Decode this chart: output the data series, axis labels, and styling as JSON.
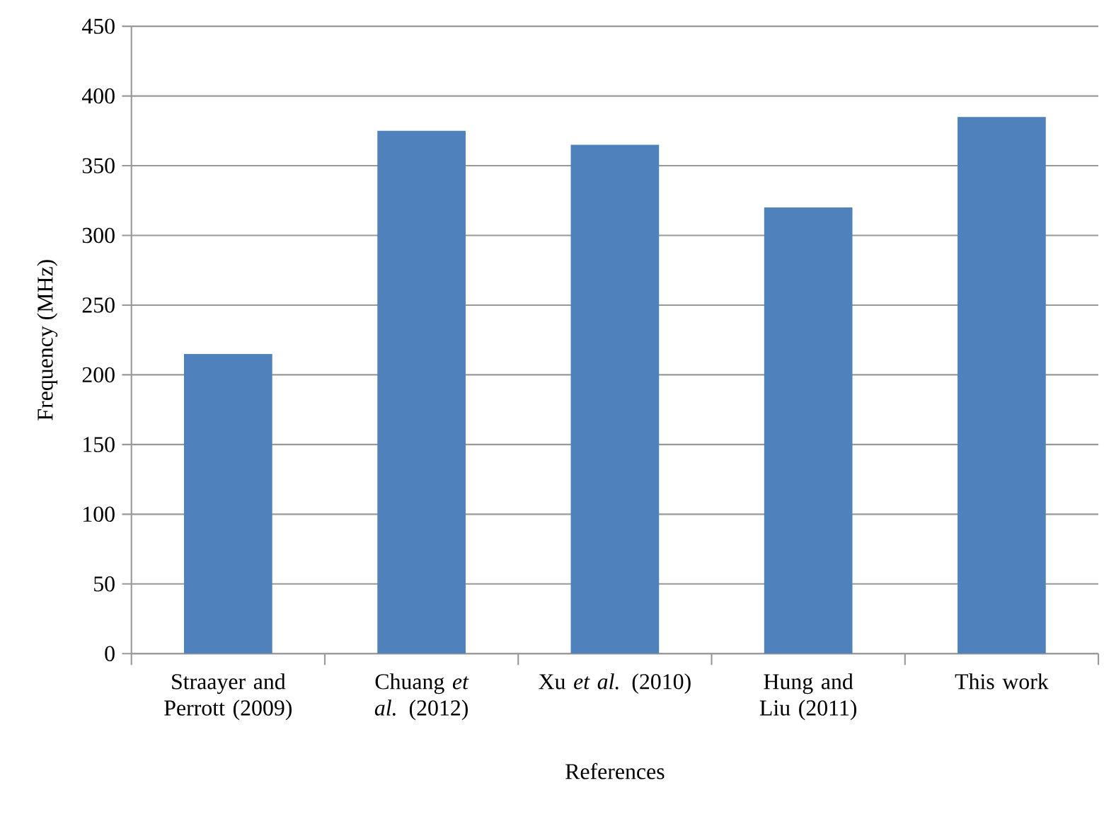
{
  "chart_data": {
    "type": "bar",
    "xlabel": "References",
    "ylabel": "Frequency (MHz)",
    "categories": [
      "Straayer and Perrott (2009)",
      "Chuang *et al.* (2012)",
      "Xu *et al.* (2010)",
      "Hung and Liu (2011)",
      "This work"
    ],
    "values": [
      215,
      375,
      365,
      320,
      385
    ],
    "color": "#4f81bd",
    "ylim": [
      0,
      450
    ],
    "yticks": [
      0,
      50,
      100,
      150,
      200,
      250,
      300,
      350,
      400,
      450
    ],
    "grid": "y"
  }
}
